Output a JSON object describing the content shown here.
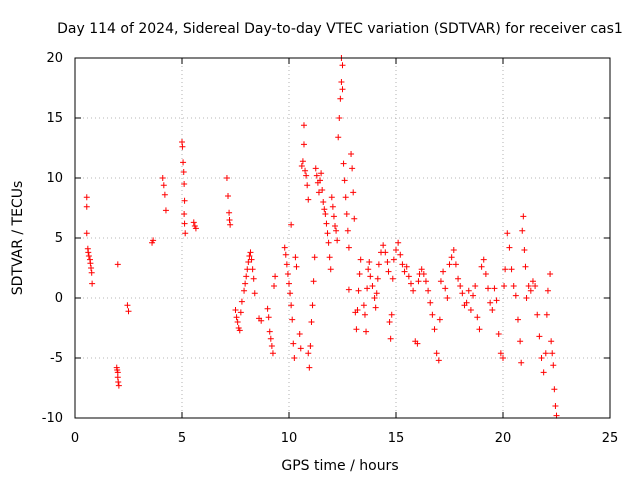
{
  "chart_data": {
    "type": "scatter",
    "title": "Day 114 of 2024, Sidereal Day-to-day VTEC variation (SDTVAR) for receiver cas1",
    "xlabel": "GPS time / hours",
    "ylabel": "SDTVAR / TECUs",
    "xlim": [
      0,
      25
    ],
    "ylim": [
      -10,
      20
    ],
    "xticks": [
      0,
      5,
      10,
      15,
      20,
      25
    ],
    "yticks": [
      -10,
      -5,
      0,
      5,
      10,
      15,
      20
    ],
    "grid": true,
    "marker": "plus",
    "color": "#ff0000",
    "series": [
      {
        "name": "SDTVAR",
        "points": [
          [
            0.55,
            8.4
          ],
          [
            0.55,
            7.6
          ],
          [
            0.55,
            5.4
          ],
          [
            0.6,
            4.1
          ],
          [
            0.62,
            3.8
          ],
          [
            0.65,
            3.5
          ],
          [
            0.7,
            3.2
          ],
          [
            0.72,
            2.9
          ],
          [
            0.75,
            2.5
          ],
          [
            0.78,
            2.1
          ],
          [
            0.8,
            1.2
          ],
          [
            1.95,
            -5.8
          ],
          [
            1.97,
            -6.0
          ],
          [
            2.0,
            -6.2
          ],
          [
            2.0,
            -6.6
          ],
          [
            2.02,
            -7.0
          ],
          [
            2.05,
            -7.3
          ],
          [
            2.0,
            2.8
          ],
          [
            2.45,
            -0.6
          ],
          [
            2.5,
            -1.1
          ],
          [
            3.6,
            4.6
          ],
          [
            3.65,
            4.8
          ],
          [
            4.1,
            10.0
          ],
          [
            4.15,
            9.4
          ],
          [
            4.2,
            8.6
          ],
          [
            4.25,
            7.3
          ],
          [
            5.0,
            13.0
          ],
          [
            5.02,
            12.6
          ],
          [
            5.05,
            11.3
          ],
          [
            5.08,
            10.5
          ],
          [
            5.1,
            9.5
          ],
          [
            5.12,
            8.1
          ],
          [
            5.1,
            7.0
          ],
          [
            5.12,
            6.2
          ],
          [
            5.15,
            5.4
          ],
          [
            5.55,
            6.3
          ],
          [
            5.6,
            6.0
          ],
          [
            5.65,
            5.8
          ],
          [
            7.1,
            10.0
          ],
          [
            7.15,
            8.5
          ],
          [
            7.2,
            7.1
          ],
          [
            7.22,
            6.5
          ],
          [
            7.25,
            6.1
          ],
          [
            7.5,
            -1.0
          ],
          [
            7.55,
            -1.6
          ],
          [
            7.6,
            -2.0
          ],
          [
            7.65,
            -2.5
          ],
          [
            7.7,
            -2.7
          ],
          [
            7.75,
            -1.2
          ],
          [
            7.8,
            -0.3
          ],
          [
            7.9,
            0.6
          ],
          [
            7.95,
            1.2
          ],
          [
            8.0,
            1.8
          ],
          [
            8.05,
            2.4
          ],
          [
            8.1,
            3.0
          ],
          [
            8.15,
            3.5
          ],
          [
            8.2,
            3.8
          ],
          [
            8.25,
            3.2
          ],
          [
            8.3,
            2.4
          ],
          [
            8.35,
            1.6
          ],
          [
            8.4,
            0.4
          ],
          [
            8.6,
            -1.7
          ],
          [
            8.7,
            -1.9
          ],
          [
            9.0,
            -0.9
          ],
          [
            9.05,
            -1.6
          ],
          [
            9.1,
            -2.8
          ],
          [
            9.15,
            -3.4
          ],
          [
            9.2,
            -4.0
          ],
          [
            9.25,
            -4.6
          ],
          [
            9.3,
            1.0
          ],
          [
            9.35,
            1.8
          ],
          [
            9.8,
            4.2
          ],
          [
            9.85,
            3.6
          ],
          [
            9.9,
            2.8
          ],
          [
            9.95,
            2.0
          ],
          [
            10.0,
            1.2
          ],
          [
            10.05,
            0.4
          ],
          [
            10.1,
            -0.6
          ],
          [
            10.15,
            -1.8
          ],
          [
            10.2,
            -3.8
          ],
          [
            10.25,
            -5.0
          ],
          [
            10.1,
            6.1
          ],
          [
            10.3,
            3.4
          ],
          [
            10.35,
            2.6
          ],
          [
            10.5,
            -3.0
          ],
          [
            10.55,
            -4.2
          ],
          [
            10.6,
            11.0
          ],
          [
            10.65,
            11.4
          ],
          [
            10.7,
            14.4
          ],
          [
            10.7,
            12.8
          ],
          [
            10.75,
            10.6
          ],
          [
            10.8,
            10.2
          ],
          [
            10.85,
            9.4
          ],
          [
            10.9,
            8.2
          ],
          [
            10.9,
            -4.6
          ],
          [
            10.95,
            -5.8
          ],
          [
            11.0,
            -4.0
          ],
          [
            11.05,
            -2.0
          ],
          [
            11.1,
            -0.6
          ],
          [
            11.15,
            1.4
          ],
          [
            11.2,
            3.4
          ],
          [
            11.25,
            10.8
          ],
          [
            11.3,
            10.2
          ],
          [
            11.35,
            9.6
          ],
          [
            11.4,
            8.8
          ],
          [
            11.45,
            9.8
          ],
          [
            11.5,
            10.4
          ],
          [
            11.55,
            9.0
          ],
          [
            11.6,
            8.0
          ],
          [
            11.65,
            7.4
          ],
          [
            11.7,
            7.0
          ],
          [
            11.75,
            6.2
          ],
          [
            11.8,
            5.4
          ],
          [
            11.85,
            4.6
          ],
          [
            11.9,
            3.4
          ],
          [
            11.95,
            2.4
          ],
          [
            12.0,
            8.4
          ],
          [
            12.05,
            7.6
          ],
          [
            12.1,
            6.8
          ],
          [
            12.15,
            6.0
          ],
          [
            12.2,
            5.6
          ],
          [
            12.25,
            4.8
          ],
          [
            12.3,
            13.4
          ],
          [
            12.35,
            15.0
          ],
          [
            12.4,
            16.6
          ],
          [
            12.45,
            18.0
          ],
          [
            12.5,
            19.4
          ],
          [
            12.45,
            20.0
          ],
          [
            12.5,
            17.4
          ],
          [
            12.55,
            11.2
          ],
          [
            12.6,
            9.8
          ],
          [
            12.65,
            8.4
          ],
          [
            12.7,
            7.0
          ],
          [
            12.75,
            5.6
          ],
          [
            12.8,
            4.2
          ],
          [
            12.8,
            0.7
          ],
          [
            12.9,
            12.0
          ],
          [
            12.95,
            10.8
          ],
          [
            13.0,
            8.8
          ],
          [
            13.05,
            6.6
          ],
          [
            13.1,
            -1.2
          ],
          [
            13.15,
            -2.6
          ],
          [
            13.2,
            -1.0
          ],
          [
            13.25,
            0.6
          ],
          [
            13.3,
            2.0
          ],
          [
            13.35,
            3.2
          ],
          [
            13.5,
            -0.6
          ],
          [
            13.55,
            -1.4
          ],
          [
            13.6,
            -2.8
          ],
          [
            13.65,
            0.8
          ],
          [
            13.7,
            2.4
          ],
          [
            13.75,
            3.0
          ],
          [
            13.8,
            1.8
          ],
          [
            13.9,
            1.0
          ],
          [
            14.0,
            0.0
          ],
          [
            14.05,
            -0.8
          ],
          [
            14.1,
            0.4
          ],
          [
            14.15,
            1.6
          ],
          [
            14.2,
            2.8
          ],
          [
            14.3,
            3.8
          ],
          [
            14.4,
            4.4
          ],
          [
            14.5,
            3.8
          ],
          [
            14.6,
            3.0
          ],
          [
            14.65,
            2.2
          ],
          [
            14.7,
            -2.0
          ],
          [
            14.75,
            -3.4
          ],
          [
            14.8,
            -1.4
          ],
          [
            14.85,
            1.6
          ],
          [
            14.9,
            3.2
          ],
          [
            15.0,
            4.0
          ],
          [
            15.1,
            4.6
          ],
          [
            15.2,
            3.6
          ],
          [
            15.3,
            2.8
          ],
          [
            15.4,
            2.2
          ],
          [
            15.5,
            2.6
          ],
          [
            15.6,
            1.8
          ],
          [
            15.7,
            1.2
          ],
          [
            15.8,
            0.6
          ],
          [
            15.9,
            -3.6
          ],
          [
            16.0,
            -3.8
          ],
          [
            16.05,
            1.4
          ],
          [
            16.1,
            2.0
          ],
          [
            16.2,
            2.4
          ],
          [
            16.3,
            2.0
          ],
          [
            16.4,
            1.4
          ],
          [
            16.5,
            0.6
          ],
          [
            16.6,
            -0.4
          ],
          [
            16.7,
            -1.4
          ],
          [
            16.8,
            -2.6
          ],
          [
            16.9,
            -4.6
          ],
          [
            17.0,
            -5.2
          ],
          [
            17.05,
            -1.8
          ],
          [
            17.1,
            1.4
          ],
          [
            17.2,
            2.2
          ],
          [
            17.3,
            0.8
          ],
          [
            17.4,
            0.0
          ],
          [
            17.5,
            2.8
          ],
          [
            17.6,
            3.4
          ],
          [
            17.7,
            4.0
          ],
          [
            17.8,
            2.8
          ],
          [
            17.9,
            1.6
          ],
          [
            18.0,
            1.0
          ],
          [
            18.1,
            0.4
          ],
          [
            18.2,
            -0.6
          ],
          [
            18.3,
            -0.4
          ],
          [
            18.4,
            0.6
          ],
          [
            18.5,
            -1.0
          ],
          [
            18.6,
            0.2
          ],
          [
            18.7,
            1.0
          ],
          [
            18.8,
            -1.6
          ],
          [
            18.9,
            -2.6
          ],
          [
            19.0,
            2.6
          ],
          [
            19.1,
            3.2
          ],
          [
            19.2,
            2.0
          ],
          [
            19.3,
            0.8
          ],
          [
            19.4,
            -0.4
          ],
          [
            19.5,
            -1.0
          ],
          [
            19.6,
            0.8
          ],
          [
            19.7,
            -0.2
          ],
          [
            19.8,
            -3.0
          ],
          [
            19.9,
            -4.6
          ],
          [
            20.0,
            -5.0
          ],
          [
            20.05,
            1.0
          ],
          [
            20.1,
            2.4
          ],
          [
            20.2,
            5.4
          ],
          [
            20.3,
            4.2
          ],
          [
            20.4,
            2.4
          ],
          [
            20.5,
            1.0
          ],
          [
            20.6,
            0.2
          ],
          [
            20.7,
            -1.8
          ],
          [
            20.8,
            -3.6
          ],
          [
            20.85,
            -5.4
          ],
          [
            20.9,
            5.6
          ],
          [
            20.95,
            6.8
          ],
          [
            21.0,
            4.0
          ],
          [
            21.05,
            2.6
          ],
          [
            21.1,
            0.0
          ],
          [
            21.2,
            1.0
          ],
          [
            21.3,
            0.6
          ],
          [
            21.4,
            1.4
          ],
          [
            21.5,
            1.0
          ],
          [
            21.6,
            -1.4
          ],
          [
            21.7,
            -3.2
          ],
          [
            21.8,
            -5.0
          ],
          [
            21.9,
            -6.2
          ],
          [
            22.0,
            -4.6
          ],
          [
            22.05,
            -1.4
          ],
          [
            22.1,
            0.6
          ],
          [
            22.2,
            2.0
          ],
          [
            22.25,
            -3.6
          ],
          [
            22.3,
            -4.6
          ],
          [
            22.35,
            -5.6
          ],
          [
            22.4,
            -7.6
          ],
          [
            22.45,
            -9.0
          ],
          [
            22.5,
            -9.8
          ]
        ]
      }
    ]
  }
}
